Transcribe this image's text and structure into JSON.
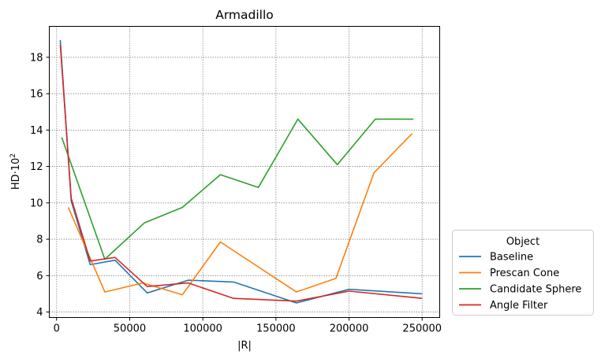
{
  "chart_data": {
    "type": "line",
    "title": "Armadillo",
    "xlabel": "|R|",
    "ylabel_main": "HD·10",
    "ylabel_exp": "2",
    "xlim": [
      -5000,
      262000
    ],
    "ylim": [
      3.7,
      19.7
    ],
    "xticks": [
      0,
      50000,
      100000,
      150000,
      200000,
      250000
    ],
    "xtick_labels": [
      "0",
      "50000",
      "100000",
      "150000",
      "200000",
      "250000"
    ],
    "yticks": [
      4,
      6,
      8,
      10,
      12,
      14,
      16,
      18
    ],
    "ytick_labels": [
      "4",
      "6",
      "8",
      "10",
      "12",
      "14",
      "16",
      "18"
    ],
    "grid": true,
    "legend_title": "Object",
    "legend_position": "outside right, bottom",
    "series": [
      {
        "name": "Baseline",
        "color": "#1f77b4",
        "x": [
          2500,
          10000,
          23000,
          40000,
          62000,
          90000,
          121000,
          164000,
          200000,
          250000
        ],
        "y": [
          18.95,
          10.1,
          6.6,
          6.85,
          5.05,
          5.75,
          5.65,
          4.5,
          5.25,
          5.0
        ]
      },
      {
        "name": "Prescan Cone",
        "color": "#ff7f0e",
        "x": [
          8000,
          33000,
          59000,
          86000,
          112000,
          164000,
          191000,
          217000,
          243000
        ],
        "y": [
          9.75,
          5.1,
          5.6,
          4.95,
          7.85,
          5.1,
          5.85,
          11.65,
          13.8
        ]
      },
      {
        "name": "Candidate Sphere",
        "color": "#2ca02c",
        "x": [
          3500,
          33000,
          60000,
          86000,
          112000,
          138000,
          165000,
          192000,
          218000,
          244000
        ],
        "y": [
          13.6,
          6.9,
          8.9,
          9.75,
          11.55,
          10.85,
          14.6,
          12.1,
          14.6,
          14.6
        ]
      },
      {
        "name": "Angle Filter",
        "color": "#d62728",
        "x": [
          2500,
          10000,
          23000,
          40000,
          62000,
          90000,
          121000,
          164000,
          200000,
          250000
        ],
        "y": [
          18.7,
          10.25,
          6.8,
          7.0,
          5.4,
          5.6,
          4.75,
          4.6,
          5.15,
          4.75
        ]
      }
    ]
  }
}
